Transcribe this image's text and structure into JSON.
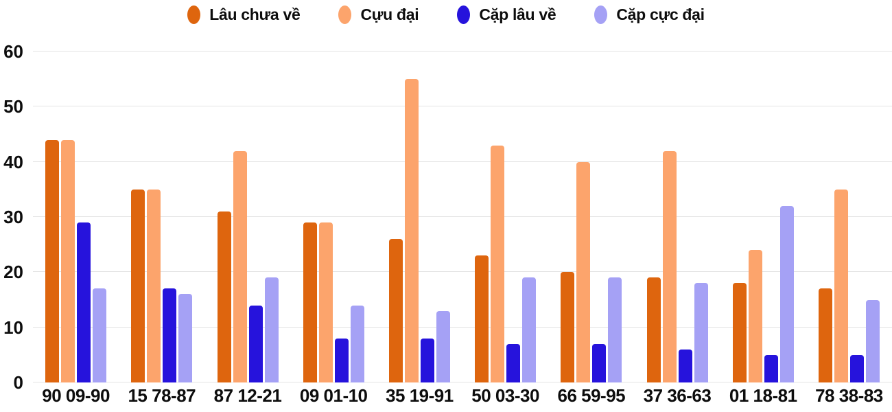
{
  "chart_data": {
    "type": "bar",
    "title": "",
    "categories": [
      "90 09-90",
      "15 78-87",
      "87 12-21",
      "09 01-10",
      "35 19-91",
      "50 03-30",
      "66 59-95",
      "37 36-63",
      "01 18-81",
      "78 38-83"
    ],
    "series": [
      {
        "name": "Lâu chưa về",
        "color": "#de650e",
        "values": [
          44,
          35,
          31,
          29,
          26,
          23,
          20,
          19,
          18,
          17
        ]
      },
      {
        "name": "Cựu đại",
        "color": "#fca46c",
        "values": [
          44,
          35,
          42,
          29,
          55,
          43,
          40,
          42,
          24,
          35
        ]
      },
      {
        "name": "Cặp lâu về",
        "color": "#2613dc",
        "values": [
          29,
          17,
          14,
          8,
          8,
          7,
          7,
          6,
          5,
          5
        ]
      },
      {
        "name": "Cặp cực đại",
        "color": "#a5a1f5",
        "values": [
          17,
          16,
          19,
          14,
          13,
          19,
          19,
          18,
          32,
          15
        ]
      }
    ],
    "xlabel": "",
    "ylabel": "",
    "ylim": [
      0,
      60
    ],
    "yticks": [
      0,
      10,
      20,
      30,
      40,
      50,
      60
    ],
    "grid": true,
    "legend_position": "top",
    "colors": {
      "background": "#ffffff",
      "gridline": "#e3e3e3",
      "text": "#0d0d0d"
    }
  }
}
